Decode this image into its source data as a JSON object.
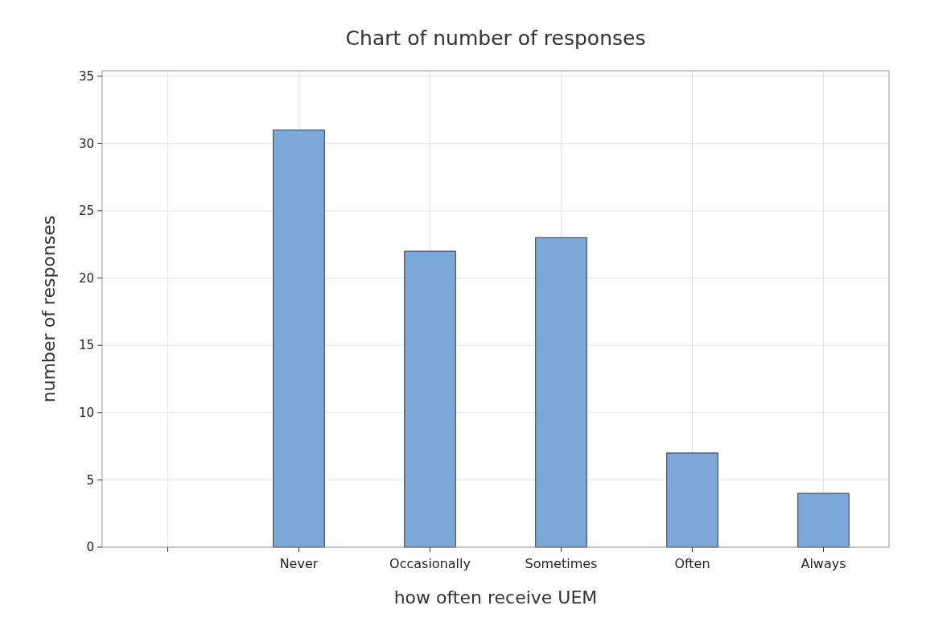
{
  "chart_data": {
    "type": "bar",
    "title": "Chart of number of responses",
    "xlabel": "how often receive UEM",
    "ylabel": "number of responses",
    "categories": [
      null,
      "Never",
      "Occasionally",
      "Sometimes",
      "Often",
      "Always"
    ],
    "values": [
      null,
      31,
      22,
      23,
      7,
      4
    ],
    "color": "#7ba7d9",
    "ylim": [
      0,
      35.4
    ],
    "yticks": [
      0,
      5,
      10,
      15,
      20,
      25,
      30,
      35
    ],
    "grid": true
  }
}
